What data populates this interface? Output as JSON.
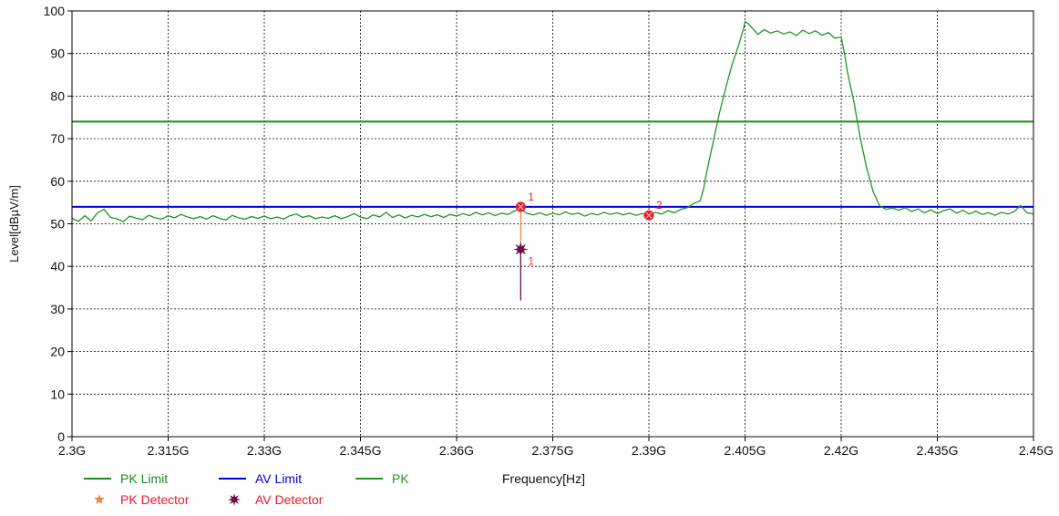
{
  "chart_data": {
    "type": "line",
    "xlabel": "Frequency[Hz]",
    "ylabel": "Level[dBµV/m]",
    "xlim": [
      2.3,
      2.45
    ],
    "ylim": [
      0,
      100
    ],
    "x_ticks": [
      {
        "value": 2.3,
        "label": "2.3G"
      },
      {
        "value": 2.315,
        "label": "2.315G"
      },
      {
        "value": 2.33,
        "label": "2.33G"
      },
      {
        "value": 2.345,
        "label": "2.345G"
      },
      {
        "value": 2.36,
        "label": "2.36G"
      },
      {
        "value": 2.375,
        "label": "2.375G"
      },
      {
        "value": 2.39,
        "label": "2.39G"
      },
      {
        "value": 2.405,
        "label": "2.405G"
      },
      {
        "value": 2.42,
        "label": "2.42G"
      },
      {
        "value": 2.435,
        "label": "2.435G"
      },
      {
        "value": 2.45,
        "label": "2.45G"
      }
    ],
    "y_ticks": [
      0,
      10,
      20,
      30,
      40,
      50,
      60,
      70,
      80,
      90,
      100
    ],
    "grid": true,
    "legend_position": "bottom-left",
    "series": [
      {
        "name": "PK Limit",
        "kind": "hline",
        "value": 74,
        "color": "#1b8a1b"
      },
      {
        "name": "AV Limit",
        "kind": "hline",
        "value": 54,
        "color": "#0000e0"
      },
      {
        "name": "PK",
        "kind": "line",
        "color": "#1f961f",
        "points": [
          [
            2.3,
            51.3
          ],
          [
            2.301,
            50.6
          ],
          [
            2.302,
            51.9
          ],
          [
            2.303,
            50.7
          ],
          [
            2.304,
            52.6
          ],
          [
            2.305,
            53.4
          ],
          [
            2.306,
            51.5
          ],
          [
            2.307,
            51.2
          ],
          [
            2.308,
            50.5
          ],
          [
            2.309,
            51.8
          ],
          [
            2.31,
            51.3
          ],
          [
            2.311,
            51.0
          ],
          [
            2.312,
            52.0
          ],
          [
            2.313,
            51.4
          ],
          [
            2.314,
            51.1
          ],
          [
            2.315,
            51.9
          ],
          [
            2.316,
            51.4
          ],
          [
            2.317,
            52.2
          ],
          [
            2.318,
            51.6
          ],
          [
            2.319,
            51.2
          ],
          [
            2.32,
            51.7
          ],
          [
            2.321,
            51.1
          ],
          [
            2.322,
            51.9
          ],
          [
            2.323,
            51.3
          ],
          [
            2.324,
            50.9
          ],
          [
            2.325,
            52.0
          ],
          [
            2.326,
            51.4
          ],
          [
            2.327,
            51.1
          ],
          [
            2.328,
            51.7
          ],
          [
            2.329,
            51.3
          ],
          [
            2.33,
            51.8
          ],
          [
            2.331,
            51.2
          ],
          [
            2.332,
            51.6
          ],
          [
            2.333,
            51.1
          ],
          [
            2.334,
            51.9
          ],
          [
            2.335,
            52.3
          ],
          [
            2.336,
            51.5
          ],
          [
            2.337,
            51.9
          ],
          [
            2.338,
            51.2
          ],
          [
            2.339,
            51.6
          ],
          [
            2.34,
            51.3
          ],
          [
            2.341,
            51.9
          ],
          [
            2.342,
            51.2
          ],
          [
            2.343,
            51.7
          ],
          [
            2.344,
            52.4
          ],
          [
            2.345,
            51.6
          ],
          [
            2.346,
            51.2
          ],
          [
            2.347,
            52.1
          ],
          [
            2.348,
            51.6
          ],
          [
            2.349,
            52.7
          ],
          [
            2.35,
            51.5
          ],
          [
            2.351,
            52.1
          ],
          [
            2.352,
            51.4
          ],
          [
            2.353,
            52.0
          ],
          [
            2.354,
            51.6
          ],
          [
            2.355,
            52.2
          ],
          [
            2.356,
            51.7
          ],
          [
            2.357,
            52.1
          ],
          [
            2.358,
            51.5
          ],
          [
            2.359,
            52.2
          ],
          [
            2.36,
            51.8
          ],
          [
            2.361,
            52.4
          ],
          [
            2.362,
            51.9
          ],
          [
            2.363,
            52.7
          ],
          [
            2.364,
            52.1
          ],
          [
            2.365,
            52.6
          ],
          [
            2.366,
            51.9
          ],
          [
            2.367,
            52.5
          ],
          [
            2.368,
            52.2
          ],
          [
            2.369,
            53.0
          ],
          [
            2.37,
            53.5
          ],
          [
            2.371,
            52.4
          ],
          [
            2.372,
            52.1
          ],
          [
            2.373,
            52.6
          ],
          [
            2.374,
            52.0
          ],
          [
            2.375,
            52.5
          ],
          [
            2.376,
            52.1
          ],
          [
            2.377,
            52.8
          ],
          [
            2.378,
            52.2
          ],
          [
            2.379,
            52.5
          ],
          [
            2.38,
            51.8
          ],
          [
            2.381,
            52.4
          ],
          [
            2.382,
            52.1
          ],
          [
            2.383,
            52.7
          ],
          [
            2.384,
            52.2
          ],
          [
            2.385,
            52.6
          ],
          [
            2.386,
            52.1
          ],
          [
            2.387,
            52.5
          ],
          [
            2.388,
            52.0
          ],
          [
            2.389,
            52.4
          ],
          [
            2.39,
            52.0
          ],
          [
            2.391,
            52.7
          ],
          [
            2.392,
            52.3
          ],
          [
            2.393,
            53.1
          ],
          [
            2.394,
            52.6
          ],
          [
            2.395,
            53.4
          ],
          [
            2.396,
            53.8
          ],
          [
            2.397,
            54.8
          ],
          [
            2.398,
            55.4
          ],
          [
            2.3985,
            58.0
          ],
          [
            2.399,
            62.0
          ],
          [
            2.4,
            69.0
          ],
          [
            2.401,
            76.0
          ],
          [
            2.402,
            82.0
          ],
          [
            2.403,
            87.5
          ],
          [
            2.404,
            92.0
          ],
          [
            2.4048,
            96.0
          ],
          [
            2.405,
            97.5
          ],
          [
            2.4055,
            97.0
          ],
          [
            2.406,
            96.2
          ],
          [
            2.407,
            94.5
          ],
          [
            2.408,
            95.6
          ],
          [
            2.409,
            94.8
          ],
          [
            2.41,
            95.3
          ],
          [
            2.411,
            94.6
          ],
          [
            2.412,
            95.1
          ],
          [
            2.413,
            94.2
          ],
          [
            2.414,
            95.5
          ],
          [
            2.415,
            94.7
          ],
          [
            2.416,
            95.3
          ],
          [
            2.417,
            94.3
          ],
          [
            2.418,
            94.9
          ],
          [
            2.419,
            93.6
          ],
          [
            2.42,
            93.9
          ],
          [
            2.4205,
            90.0
          ],
          [
            2.421,
            85.5
          ],
          [
            2.422,
            78.5
          ],
          [
            2.423,
            70.0
          ],
          [
            2.424,
            63.0
          ],
          [
            2.425,
            57.5
          ],
          [
            2.426,
            54.2
          ],
          [
            2.427,
            53.4
          ],
          [
            2.428,
            53.7
          ],
          [
            2.429,
            53.2
          ],
          [
            2.43,
            53.8
          ],
          [
            2.431,
            52.9
          ],
          [
            2.432,
            53.5
          ],
          [
            2.433,
            52.6
          ],
          [
            2.434,
            53.3
          ],
          [
            2.435,
            52.4
          ],
          [
            2.436,
            53.1
          ],
          [
            2.437,
            53.5
          ],
          [
            2.438,
            52.5
          ],
          [
            2.439,
            53.2
          ],
          [
            2.44,
            52.3
          ],
          [
            2.441,
            53.0
          ],
          [
            2.442,
            52.2
          ],
          [
            2.443,
            52.6
          ],
          [
            2.444,
            52.0
          ],
          [
            2.445,
            52.7
          ],
          [
            2.446,
            52.3
          ],
          [
            2.447,
            52.9
          ],
          [
            2.448,
            54.3
          ],
          [
            2.449,
            52.6
          ],
          [
            2.45,
            52.3
          ]
        ]
      }
    ],
    "detectors": [
      {
        "name": "PK Detector",
        "color": "#ee8844",
        "marker_color": "#e8192c",
        "label_color": "#e8192c",
        "points": [
          {
            "label": "1",
            "x": 2.37,
            "y": 54.0
          },
          {
            "label": "2",
            "x": 2.39,
            "y": 52.0
          }
        ]
      },
      {
        "name": "AV Detector",
        "color": "#6b0f45",
        "label_color": "#ff2d2d",
        "points": [
          {
            "label": "1",
            "x": 2.37,
            "y": 44.0,
            "stem_to": 32
          }
        ]
      }
    ],
    "legend": [
      {
        "label": "PK Limit",
        "symbol": "line",
        "color": "#1b8a1b"
      },
      {
        "label": "AV Limit",
        "symbol": "line",
        "color": "#0000e0"
      },
      {
        "label": "PK",
        "symbol": "line",
        "color": "#1f961f"
      },
      {
        "label": "PK Detector",
        "symbol": "star",
        "color": "#ee8844"
      },
      {
        "label": "AV Detector",
        "symbol": "burst",
        "color": "#6b0f45"
      }
    ]
  }
}
